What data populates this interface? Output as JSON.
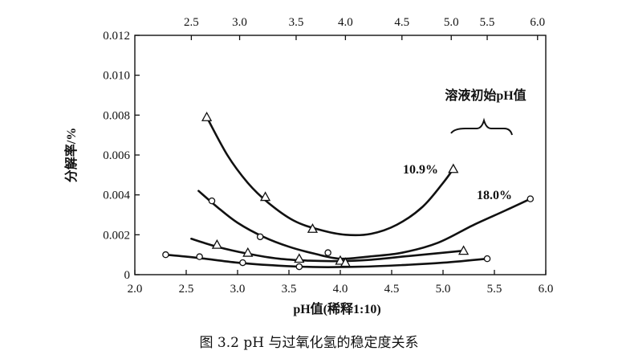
{
  "chart_data": {
    "type": "line",
    "title": "",
    "xlabel": "pH值(稀释1:10)",
    "ylabel": "分解率/%",
    "xlim": [
      2.0,
      6.0
    ],
    "ylim": [
      0,
      0.012
    ],
    "x_ticks": [
      "2.0",
      "2.5",
      "3.0",
      "3.5",
      "4.0",
      "4.5",
      "5.0",
      "5.5",
      "6.0"
    ],
    "y_ticks": [
      "0",
      "0.002",
      "0.004",
      "0.006",
      "0.008",
      "0.010",
      "0.012"
    ],
    "top_x_ticks": [
      {
        "label": "2.5",
        "x": 2.55
      },
      {
        "label": "3.0",
        "x": 3.02
      },
      {
        "label": "3.5",
        "x": 3.57
      },
      {
        "label": "4.0",
        "x": 4.05
      },
      {
        "label": "4.5",
        "x": 4.6
      },
      {
        "label": "5.0",
        "x": 5.08
      },
      {
        "label": "5.5",
        "x": 5.43
      },
      {
        "label": "6.0",
        "x": 5.92
      }
    ],
    "legend_title": "溶液初始pH值",
    "series": [
      {
        "name": "10.9%",
        "marker": "triangle",
        "points": [
          [
            2.7,
            0.0079
          ],
          [
            3.27,
            0.0039
          ],
          [
            3.73,
            0.0023
          ],
          [
            4.0,
            0.0007
          ],
          [
            5.1,
            0.0053
          ]
        ],
        "curve": [
          [
            2.7,
            0.0079
          ],
          [
            2.9,
            0.006
          ],
          [
            3.1,
            0.0046
          ],
          [
            3.3,
            0.0036
          ],
          [
            3.55,
            0.0027
          ],
          [
            3.8,
            0.00225
          ],
          [
            4.05,
            0.002
          ],
          [
            4.3,
            0.00205
          ],
          [
            4.55,
            0.0025
          ],
          [
            4.8,
            0.0034
          ],
          [
            5.0,
            0.0046
          ],
          [
            5.1,
            0.0053
          ]
        ]
      },
      {
        "name": "18.0%",
        "marker": "circle",
        "points": [
          [
            2.75,
            0.0037
          ],
          [
            3.22,
            0.0019
          ],
          [
            3.88,
            0.0011
          ],
          [
            5.85,
            0.0038
          ]
        ],
        "curve": [
          [
            2.62,
            0.0042
          ],
          [
            2.8,
            0.0034
          ],
          [
            3.0,
            0.0026
          ],
          [
            3.25,
            0.0019
          ],
          [
            3.5,
            0.0014
          ],
          [
            3.75,
            0.00105
          ],
          [
            4.0,
            0.0008
          ],
          [
            4.3,
            0.00092
          ],
          [
            4.6,
            0.0011
          ],
          [
            4.95,
            0.0016
          ],
          [
            5.3,
            0.0025
          ],
          [
            5.6,
            0.0032
          ],
          [
            5.85,
            0.0038
          ]
        ]
      },
      {
        "name": "",
        "marker": "triangle",
        "points": [
          [
            2.8,
            0.0015
          ],
          [
            3.1,
            0.0011
          ],
          [
            3.6,
            0.0008
          ],
          [
            4.05,
            0.0006
          ],
          [
            5.2,
            0.0012
          ]
        ],
        "curve": [
          [
            2.55,
            0.0018
          ],
          [
            2.8,
            0.0014
          ],
          [
            3.1,
            0.00105
          ],
          [
            3.4,
            0.0008
          ],
          [
            3.7,
            0.0007
          ],
          [
            4.0,
            0.00068
          ],
          [
            4.3,
            0.00075
          ],
          [
            4.6,
            0.0009
          ],
          [
            4.9,
            0.00105
          ],
          [
            5.2,
            0.0012
          ]
        ]
      },
      {
        "name": "",
        "marker": "circle",
        "points": [
          [
            2.3,
            0.001
          ],
          [
            2.63,
            0.0009
          ],
          [
            3.05,
            0.0006
          ],
          [
            3.6,
            0.0004
          ],
          [
            5.43,
            0.0008
          ]
        ],
        "curve": [
          [
            2.3,
            0.001
          ],
          [
            2.6,
            0.00085
          ],
          [
            3.0,
            0.0006
          ],
          [
            3.4,
            0.00045
          ],
          [
            3.8,
            0.00038
          ],
          [
            4.2,
            0.0004
          ],
          [
            4.6,
            0.00048
          ],
          [
            5.0,
            0.0006
          ],
          [
            5.43,
            0.0008
          ]
        ]
      }
    ]
  },
  "caption": "图 3.2   pH 与过氧化氢的稳定度关系"
}
